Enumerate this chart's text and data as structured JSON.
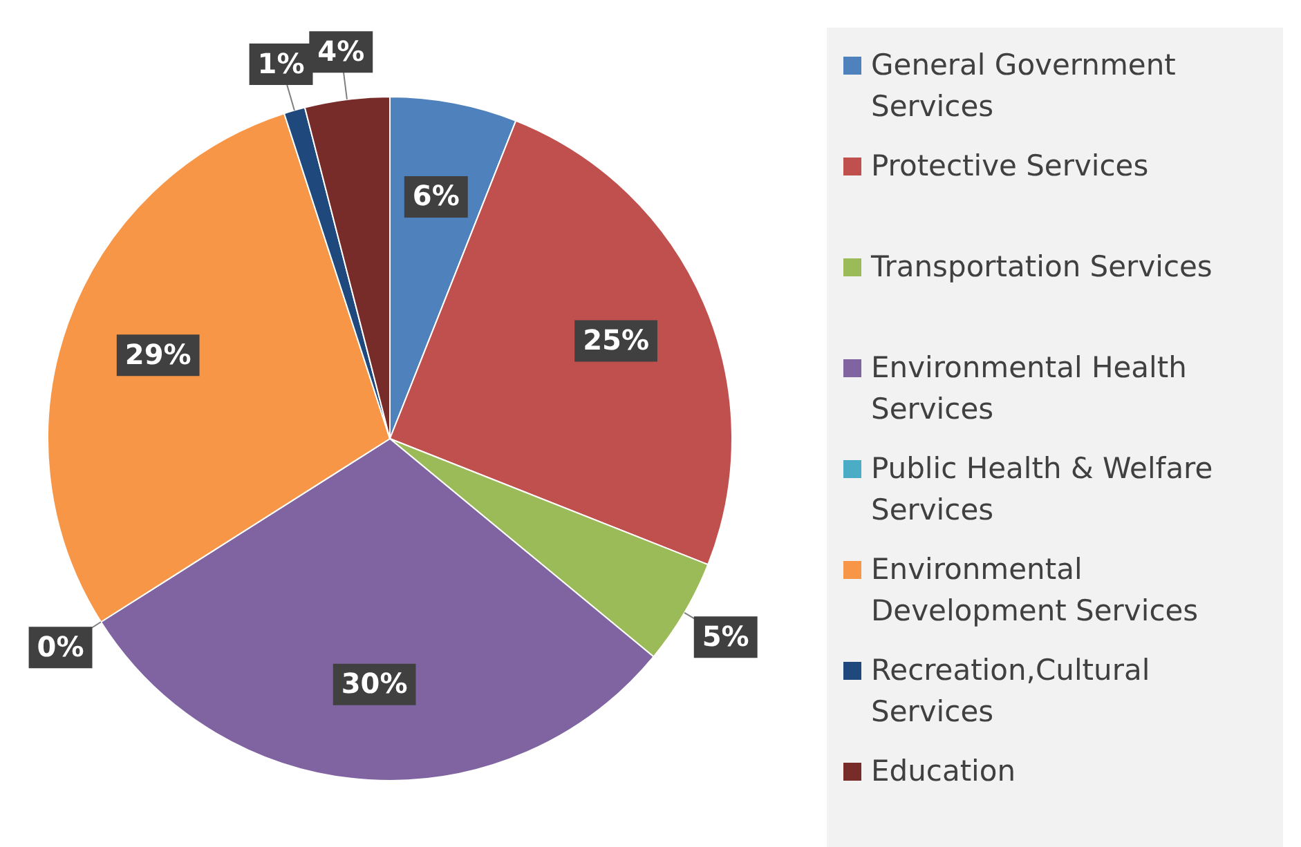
{
  "chart_data": {
    "type": "pie",
    "categories": [
      "General Government Services",
      "Protective Services",
      "Transportation Services",
      "Environmental Health Services",
      "Public Health & Welfare Services",
      "Environmental Development Services",
      "Recreation,Cultural Services",
      "Education"
    ],
    "values": [
      6,
      25,
      5,
      30,
      0,
      29,
      1,
      4
    ],
    "colors": [
      "#4f81bd",
      "#c0504d",
      "#9bbb59",
      "#8064a2",
      "#4bacc6",
      "#f79646",
      "#1f497d",
      "#772c2a"
    ],
    "value_labels": [
      "6%",
      "25%",
      "5%",
      "30%",
      "0%",
      "29%",
      "1%",
      "4%"
    ],
    "legend": "right"
  }
}
